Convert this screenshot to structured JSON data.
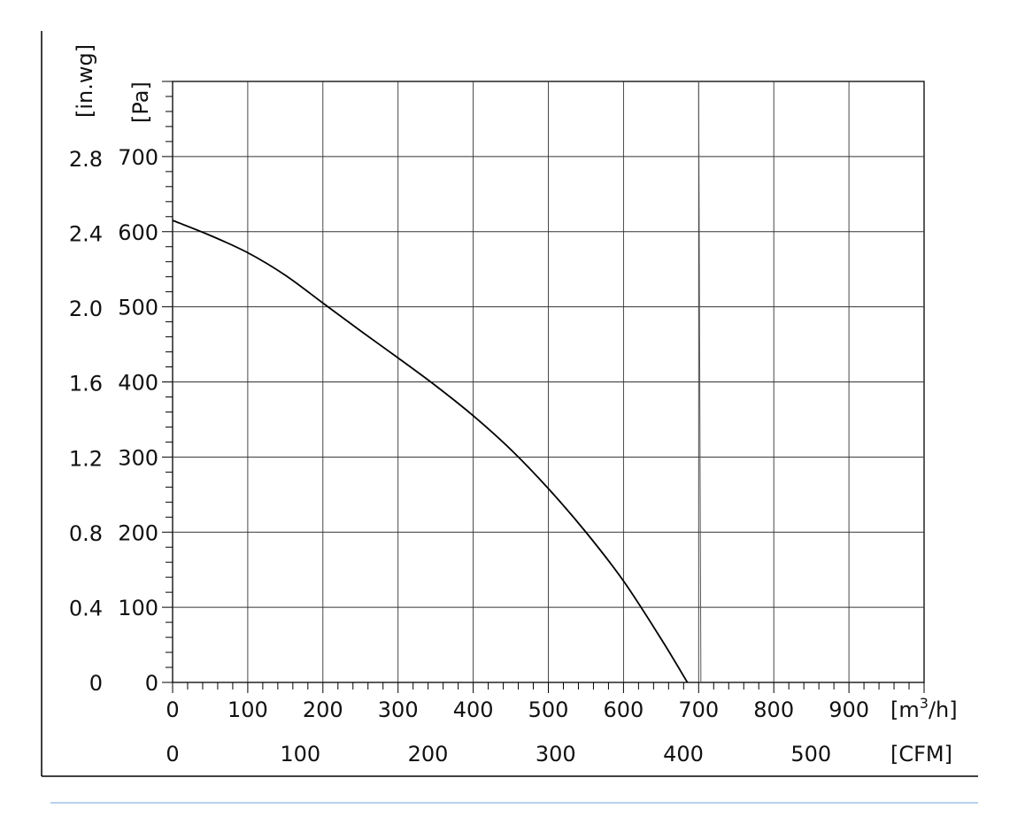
{
  "chart_data": {
    "type": "line",
    "title": "",
    "x_axis_primary": {
      "unit_label": "[m³/h]",
      "unit_base": "[m",
      "unit_sup": "3",
      "unit_tail": "/h]",
      "range": [
        0,
        1000
      ],
      "ticks": [
        0,
        100,
        200,
        300,
        400,
        500,
        600,
        700,
        800,
        900
      ],
      "tick_labels": [
        "0",
        "100",
        "200",
        "300",
        "400",
        "500",
        "600",
        "700",
        "800",
        "900"
      ]
    },
    "x_axis_secondary": {
      "unit_label": "[CFM]",
      "ticks": [
        0,
        100,
        200,
        300,
        400,
        500
      ],
      "tick_labels": [
        "0",
        "100",
        "200",
        "300",
        "400",
        "500"
      ]
    },
    "y_axis_primary": {
      "unit_label": "[Pa]",
      "range": [
        0,
        800
      ],
      "ticks": [
        0,
        100,
        200,
        300,
        400,
        500,
        600,
        700
      ],
      "tick_labels": [
        "0",
        "100",
        "200",
        "300",
        "400",
        "500",
        "600",
        "700"
      ]
    },
    "y_axis_secondary": {
      "unit_label": "[in.wg]",
      "ticks": [
        0,
        0.4,
        0.8,
        1.2,
        1.6,
        2.0,
        2.4,
        2.8
      ],
      "tick_labels": [
        "0",
        "0.4",
        "0.8",
        "1.2",
        "1.6",
        "2.0",
        "2.4",
        "2.8"
      ]
    },
    "grid": true,
    "series": [
      {
        "x": [
          0,
          50,
          100,
          150,
          200,
          250,
          300,
          350,
          400,
          450,
          500,
          550,
          600,
          650,
          685
        ],
        "y": [
          615,
          595,
          572,
          542,
          505,
          468,
          432,
          395,
          355,
          310,
          258,
          200,
          135,
          58,
          0
        ]
      }
    ],
    "reference_line": {
      "x": [
        700,
        703
      ],
      "y": [
        800,
        0
      ]
    }
  }
}
